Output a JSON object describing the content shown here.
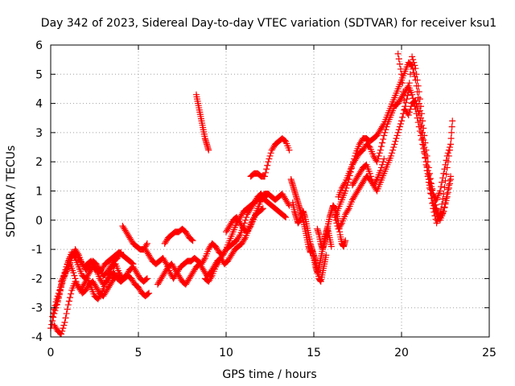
{
  "chart_data": {
    "type": "scatter",
    "title": "Day 342 of 2023, Sidereal Day-to-day VTEC variation (SDTVAR) for receiver ksu1",
    "xlabel": "GPS time / hours",
    "ylabel": "SDTVAR / TECUs",
    "xlim": [
      0,
      25
    ],
    "ylim": [
      -4,
      6
    ],
    "xticks": [
      "0",
      "5",
      "10",
      "15",
      "20",
      "25"
    ],
    "yticks": [
      "-4",
      "-3",
      "-2",
      "-1",
      "0",
      "1",
      "2",
      "3",
      "4",
      "5",
      "6"
    ],
    "grid": true,
    "marker": "+",
    "color": "#ff0000",
    "series": [
      {
        "name": "s1",
        "x": [
          0.0,
          0.2,
          0.4,
          0.6,
          0.8,
          1.0,
          1.2,
          1.4,
          1.6,
          1.8,
          2.0,
          2.2,
          2.4,
          2.6,
          2.8,
          3.0,
          3.2,
          3.4,
          3.6,
          3.8,
          4.0,
          4.2,
          4.4,
          4.6,
          4.8,
          5.0,
          5.2,
          5.4,
          5.6
        ],
        "y": [
          -3.7,
          -3.2,
          -2.8,
          -2.3,
          -1.8,
          -1.4,
          -1.1,
          -1.3,
          -1.6,
          -1.9,
          -2.0,
          -1.8,
          -1.6,
          -1.7,
          -2.0,
          -2.2,
          -2.1,
          -1.9,
          -1.8,
          -2.0,
          -2.1,
          -2.0,
          -1.9,
          -2.0,
          -2.2,
          -2.3,
          -2.5,
          -2.6,
          -2.5
        ]
      },
      {
        "name": "s2",
        "x": [
          0.1,
          0.3,
          0.5,
          0.7,
          0.9,
          1.1,
          1.3,
          1.5,
          1.7,
          1.9,
          2.1,
          2.3,
          2.5,
          2.7,
          2.9,
          3.1,
          3.3,
          3.5,
          3.7,
          3.9,
          4.1,
          4.3,
          4.5,
          4.7,
          4.9,
          5.1,
          5.3,
          5.5
        ],
        "y": [
          -3.3,
          -2.8,
          -2.4,
          -2.0,
          -1.7,
          -1.5,
          -1.8,
          -2.2,
          -2.4,
          -2.2,
          -2.0,
          -2.3,
          -2.6,
          -2.7,
          -2.5,
          -2.2,
          -1.9,
          -1.6,
          -1.5,
          -1.8,
          -2.0,
          -1.9,
          -1.7,
          -1.6,
          -1.8,
          -2.0,
          -2.1,
          -2.0
        ]
      },
      {
        "name": "s3",
        "x": [
          0.2,
          0.4,
          0.6,
          0.8,
          1.0,
          1.2,
          1.4,
          1.6,
          1.8,
          2.0,
          2.2,
          2.4,
          2.6,
          2.8,
          3.0,
          3.2,
          3.4,
          3.6,
          3.8,
          4.0
        ],
        "y": [
          -3.6,
          -3.8,
          -3.9,
          -3.5,
          -2.9,
          -2.4,
          -2.1,
          -2.3,
          -2.5,
          -2.4,
          -2.2,
          -2.1,
          -2.3,
          -2.5,
          -2.6,
          -2.4,
          -2.2,
          -2.0,
          -1.9,
          -2.1
        ]
      },
      {
        "name": "s4",
        "x": [
          0.3,
          0.5,
          0.7,
          0.9,
          1.1,
          1.3,
          1.5,
          1.7,
          1.9,
          2.1,
          2.3,
          2.5,
          2.7,
          2.9,
          3.1,
          3.3,
          3.5,
          3.7,
          3.9,
          4.1,
          4.3,
          4.5,
          4.7
        ],
        "y": [
          -3.0,
          -2.5,
          -2.0,
          -1.6,
          -1.3,
          -1.1,
          -1.2,
          -1.4,
          -1.6,
          -1.5,
          -1.4,
          -1.6,
          -1.8,
          -1.7,
          -1.5,
          -1.4,
          -1.3,
          -1.2,
          -1.1,
          -1.2,
          -1.3,
          -1.4,
          -1.5
        ]
      },
      {
        "name": "s5",
        "x": [
          0.6,
          0.8,
          1.0,
          1.2,
          1.4,
          1.6,
          1.8,
          2.0,
          2.2,
          2.4,
          2.6,
          2.8,
          3.0,
          3.2,
          3.4,
          3.6,
          3.8,
          4.0
        ],
        "y": [
          -2.1,
          -1.9,
          -1.6,
          -1.3,
          -1.0,
          -1.2,
          -1.5,
          -1.7,
          -1.6,
          -1.4,
          -1.5,
          -1.7,
          -1.9,
          -1.8,
          -1.6,
          -1.4,
          -1.3,
          -1.1
        ]
      },
      {
        "name": "s6",
        "x": [
          4.1,
          4.3,
          4.5,
          4.7,
          4.9,
          5.1,
          5.3,
          5.5
        ],
        "y": [
          -0.2,
          -0.4,
          -0.6,
          -0.8,
          -0.9,
          -1.0,
          -1.0,
          -0.8
        ]
      },
      {
        "name": "s7",
        "x": [
          5.4,
          5.6,
          5.8,
          6.0,
          6.2,
          6.4,
          6.6,
          6.8,
          7.0,
          7.2,
          7.4,
          7.6,
          7.8,
          8.0,
          8.2,
          8.4,
          8.6,
          8.8,
          9.0,
          9.2,
          9.4,
          9.6,
          9.8,
          10.0,
          10.2,
          10.4,
          10.6,
          10.8,
          11.0,
          11.2,
          11.4,
          11.6,
          11.8,
          12.0,
          12.2,
          12.4
        ],
        "y": [
          -1.0,
          -1.2,
          -1.4,
          -1.5,
          -1.4,
          -1.3,
          -1.5,
          -1.8,
          -2.0,
          -1.8,
          -1.6,
          -1.5,
          -1.4,
          -1.4,
          -1.3,
          -1.4,
          -1.5,
          -1.3,
          -1.0,
          -0.8,
          -0.9,
          -1.1,
          -1.2,
          -1.0,
          -0.7,
          -0.4,
          -0.1,
          0.1,
          0.3,
          0.4,
          0.5,
          0.6,
          0.7,
          0.8,
          0.9,
          0.9
        ]
      },
      {
        "name": "s8",
        "x": [
          6.1,
          6.3,
          6.5,
          6.7,
          6.9,
          7.1,
          7.3,
          7.5,
          7.7,
          7.9,
          8.1,
          8.3,
          8.5,
          8.7,
          8.9,
          9.1,
          9.3,
          9.5,
          9.7,
          9.9,
          10.1,
          10.3,
          10.5,
          10.7,
          10.9,
          11.1,
          11.3,
          11.5,
          11.7,
          11.9,
          12.1
        ],
        "y": [
          -2.2,
          -2.0,
          -1.8,
          -1.6,
          -1.5,
          -1.7,
          -1.9,
          -2.1,
          -2.2,
          -2.0,
          -1.8,
          -1.6,
          -1.5,
          -1.7,
          -1.9,
          -1.8,
          -1.6,
          -1.4,
          -1.3,
          -1.5,
          -1.4,
          -1.2,
          -1.0,
          -0.9,
          -0.8,
          -0.6,
          -0.3,
          0.0,
          0.2,
          0.3,
          0.4
        ]
      },
      {
        "name": "s9",
        "x": [
          6.5,
          6.7,
          6.9,
          7.1,
          7.3,
          7.5,
          7.7,
          7.9,
          8.1
        ],
        "y": [
          -0.8,
          -0.6,
          -0.5,
          -0.4,
          -0.4,
          -0.3,
          -0.4,
          -0.6,
          -0.7
        ]
      },
      {
        "name": "s10",
        "x": [
          8.3,
          8.4,
          8.5,
          8.6,
          8.7,
          8.8,
          8.9,
          9.0
        ],
        "y": [
          4.3,
          4.0,
          3.7,
          3.4,
          3.1,
          2.8,
          2.6,
          2.4
        ]
      },
      {
        "name": "s11",
        "x": [
          8.8,
          9.0,
          9.2,
          9.4,
          9.6,
          9.8,
          10.0,
          10.2,
          10.4,
          10.6,
          10.8,
          11.0,
          11.2,
          11.4,
          11.6,
          11.8,
          12.0,
          12.2,
          12.4,
          12.6,
          12.8,
          13.0,
          13.2,
          13.4
        ],
        "y": [
          -2.0,
          -2.1,
          -1.9,
          -1.6,
          -1.4,
          -1.2,
          -1.0,
          -0.9,
          -0.8,
          -0.7,
          -0.5,
          -0.2,
          0.2,
          0.4,
          0.6,
          0.8,
          0.9,
          0.7,
          0.6,
          0.5,
          0.4,
          0.3,
          0.2,
          0.1
        ]
      },
      {
        "name": "s12",
        "x": [
          10.0,
          10.2,
          10.4,
          10.6,
          10.8,
          11.0,
          11.2,
          11.4,
          11.6,
          11.8,
          12.0,
          12.2,
          12.4,
          12.6,
          12.8,
          13.0,
          13.2,
          13.4,
          13.6
        ],
        "y": [
          -0.4,
          -0.2,
          0.0,
          0.1,
          -0.1,
          -0.3,
          -0.4,
          -0.2,
          0.1,
          0.4,
          0.7,
          0.8,
          0.9,
          0.8,
          0.7,
          0.8,
          0.9,
          0.7,
          0.5
        ]
      },
      {
        "name": "s13",
        "x": [
          11.4,
          11.6,
          11.8,
          12.0,
          12.2,
          12.4,
          12.6,
          12.8,
          13.0,
          13.2,
          13.4,
          13.6
        ],
        "y": [
          1.5,
          1.6,
          1.6,
          1.5,
          1.5,
          2.0,
          2.4,
          2.6,
          2.7,
          2.8,
          2.7,
          2.4
        ]
      },
      {
        "name": "s14",
        "x": [
          13.7,
          13.8,
          13.9,
          14.0,
          14.1,
          14.2,
          14.3,
          14.4,
          14.5,
          14.6,
          14.7,
          14.8,
          14.9,
          15.0,
          15.1,
          15.2,
          15.3,
          15.4,
          15.5,
          15.6,
          15.7
        ],
        "y": [
          1.4,
          1.2,
          1.0,
          0.8,
          0.6,
          0.4,
          0.2,
          0.0,
          -0.3,
          -0.6,
          -0.9,
          -1.1,
          -1.0,
          -1.2,
          -1.4,
          -1.7,
          -2.0,
          -2.1,
          -1.8,
          -1.5,
          -1.2
        ]
      },
      {
        "name": "s15",
        "x": [
          13.8,
          13.9,
          14.0,
          14.1,
          14.2,
          14.3,
          14.4,
          14.5,
          14.6,
          14.7,
          14.8,
          14.9,
          15.0,
          15.1,
          15.2,
          15.3,
          15.4,
          15.5,
          15.6,
          15.7,
          15.8,
          15.9,
          16.0,
          16.1,
          16.2,
          16.3,
          16.4,
          16.5,
          16.6,
          16.7,
          16.8
        ],
        "y": [
          0.6,
          0.3,
          0.1,
          -0.1,
          0.0,
          0.2,
          0.3,
          0.1,
          -0.2,
          -0.5,
          -0.8,
          -1.0,
          -1.3,
          -1.6,
          -1.8,
          -1.6,
          -1.3,
          -1.0,
          -0.7,
          -0.4,
          -0.2,
          0.1,
          0.3,
          0.5,
          0.4,
          0.2,
          -0.1,
          -0.5,
          -0.8,
          -0.9,
          -0.7
        ]
      },
      {
        "name": "s16",
        "x": [
          15.2,
          15.3,
          15.4,
          15.5,
          15.6,
          15.7,
          15.8,
          15.9,
          16.0
        ],
        "y": [
          -0.3,
          -0.5,
          -0.8,
          -1.0,
          -0.8,
          -0.5,
          -0.3,
          -0.6,
          -0.9
        ]
      },
      {
        "name": "s17",
        "x": [
          16.2,
          16.4,
          16.6,
          16.8,
          17.0,
          17.2,
          17.4,
          17.6,
          17.8,
          18.0,
          18.2,
          18.4,
          18.6,
          18.8,
          19.0,
          19.2,
          19.4,
          19.6,
          19.8,
          20.0,
          20.2,
          20.4,
          20.6,
          20.8,
          21.0,
          21.2,
          21.4,
          21.6,
          21.8,
          22.0,
          22.2,
          22.4,
          22.6,
          22.8
        ],
        "y": [
          0.1,
          0.4,
          0.7,
          1.0,
          1.4,
          1.9,
          2.3,
          2.6,
          2.8,
          2.8,
          2.7,
          2.8,
          2.9,
          3.1,
          3.3,
          3.6,
          3.9,
          4.2,
          4.5,
          4.8,
          5.1,
          5.4,
          5.3,
          4.8,
          4.0,
          3.0,
          2.0,
          1.2,
          0.6,
          0.2,
          0.0,
          0.3,
          0.9,
          1.5
        ]
      },
      {
        "name": "s18",
        "x": [
          16.4,
          16.6,
          16.8,
          17.0,
          17.2,
          17.4,
          17.6,
          17.8,
          18.0,
          18.2,
          18.4,
          18.6,
          18.8,
          19.0,
          19.2,
          19.4,
          19.6,
          19.8,
          20.0,
          20.2,
          20.4,
          20.6,
          20.8,
          21.0,
          21.2,
          21.4,
          21.6,
          21.8,
          22.0,
          22.2,
          22.4,
          22.6,
          22.8
        ],
        "y": [
          0.8,
          1.1,
          1.3,
          1.6,
          1.9,
          2.1,
          2.3,
          2.4,
          2.6,
          2.5,
          2.2,
          2.0,
          2.4,
          2.9,
          3.3,
          3.6,
          3.9,
          4.0,
          4.2,
          4.4,
          4.6,
          4.3,
          3.8,
          3.2,
          2.6,
          2.0,
          1.4,
          0.9,
          0.7,
          1.0,
          1.6,
          2.2,
          2.6
        ]
      },
      {
        "name": "s19",
        "x": [
          17.2,
          17.4,
          17.6,
          17.8,
          18.0,
          18.2,
          18.4,
          18.6,
          18.8,
          19.0,
          19.2,
          19.4,
          19.6,
          19.8,
          20.0,
          20.2,
          20.4,
          20.6,
          20.8,
          21.0,
          21.2,
          21.4,
          21.6,
          21.8,
          22.0,
          22.2,
          22.4,
          22.6,
          22.8
        ],
        "y": [
          1.2,
          1.4,
          1.6,
          1.8,
          1.9,
          1.6,
          1.2,
          1.0,
          1.3,
          1.6,
          1.9,
          2.2,
          2.6,
          3.0,
          3.4,
          3.9,
          4.4,
          5.6,
          5.2,
          4.4,
          3.4,
          2.4,
          1.6,
          0.9,
          0.4,
          0.1,
          0.3,
          0.8,
          1.4
        ]
      },
      {
        "name": "s20",
        "x": [
          19.8,
          20.0,
          20.2,
          20.4,
          20.6,
          20.8,
          21.0,
          21.2,
          21.4,
          21.6,
          21.8,
          22.0,
          22.2,
          22.4,
          22.6,
          22.8,
          22.9
        ],
        "y": [
          5.7,
          5.0,
          3.8,
          3.6,
          4.0,
          4.1,
          3.6,
          2.8,
          1.9,
          1.1,
          0.4,
          -0.1,
          0.2,
          0.9,
          1.8,
          2.6,
          3.4
        ]
      },
      {
        "name": "s21",
        "x": [
          16.2,
          16.4,
          16.6,
          16.8,
          17.0,
          17.2,
          17.4,
          17.6,
          17.8,
          18.0,
          18.2,
          18.4,
          18.6,
          18.8,
          19.0
        ],
        "y": [
          0.1,
          -0.3,
          -0.1,
          0.2,
          0.4,
          0.7,
          0.9,
          1.1,
          1.3,
          1.5,
          1.4,
          1.2,
          1.4,
          1.7,
          2.1
        ]
      }
    ]
  }
}
